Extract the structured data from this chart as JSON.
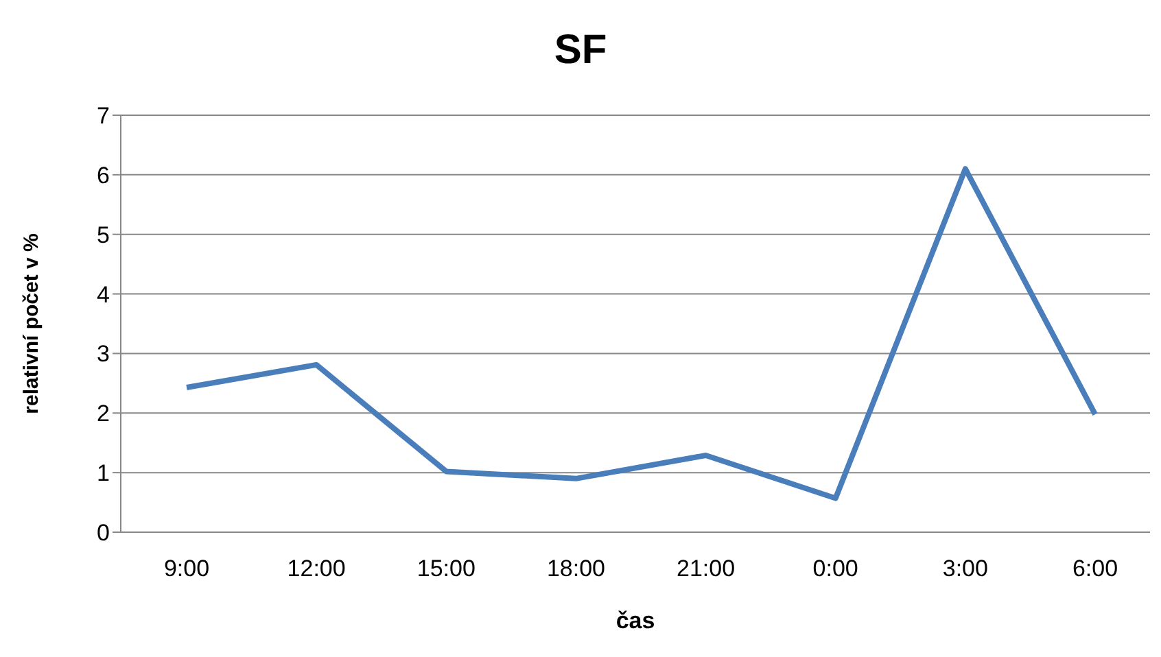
{
  "chart_data": {
    "type": "line",
    "title": "SF",
    "xlabel": "čas",
    "ylabel": "relativní počet v %",
    "categories": [
      "9:00",
      "12:00",
      "15:00",
      "18:00",
      "21:00",
      "0:00",
      "3:00",
      "6:00"
    ],
    "series": [
      {
        "color": "#4a7ebb",
        "values": [
          2.43,
          2.81,
          1.02,
          0.9,
          1.29,
          0.57,
          6.1,
          1.98
        ]
      }
    ],
    "ylim": [
      0,
      7
    ],
    "yticks": [
      0,
      1,
      2,
      3,
      4,
      5,
      6,
      7
    ],
    "grid": "y",
    "marker": "none",
    "line_style": "solid"
  }
}
